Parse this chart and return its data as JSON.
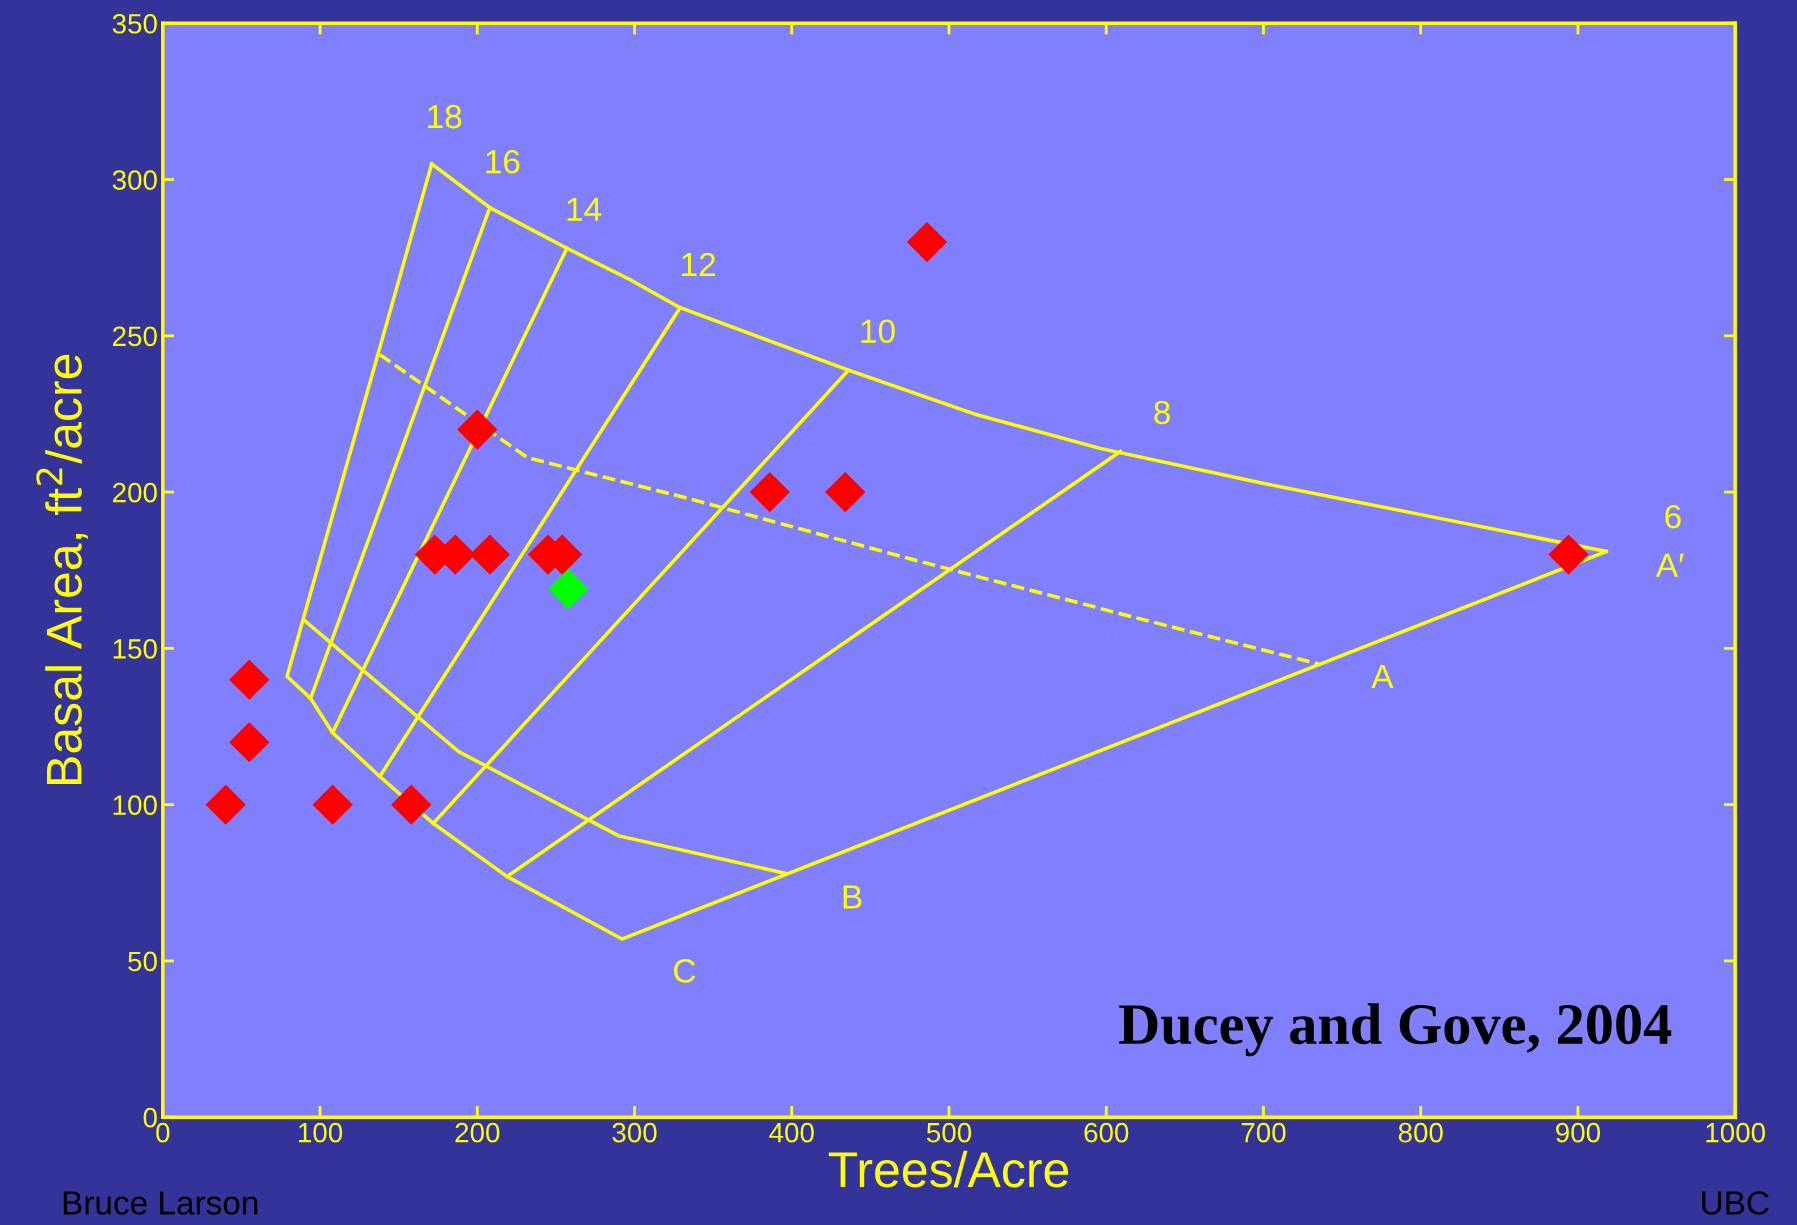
{
  "chart_data": {
    "type": "scatter",
    "xlabel": "Trees/Acre",
    "ylabel": "Basal Area, ft$^{2}$/acre",
    "xlim": [
      0,
      1000
    ],
    "ylim": [
      0,
      350
    ],
    "xticks": [
      0,
      100,
      200,
      300,
      400,
      500,
      600,
      700,
      800,
      900,
      1000
    ],
    "yticks": [
      0,
      50,
      100,
      150,
      200,
      250,
      300,
      350
    ],
    "grid": false,
    "series": [
      {
        "type": "line",
        "color": "#ffff00",
        "x": [
          171,
          208,
          257,
          297,
          329,
          436,
          516,
          596,
          698,
          808,
          918
        ],
        "values": [
          305,
          291,
          278,
          268,
          259,
          239,
          225,
          214,
          203,
          192,
          181
        ]
      },
      {
        "type": "line",
        "color": "#ffff00",
        "x": [
          171,
          79,
          94,
          108,
          138,
          172,
          219,
          292,
          918
        ],
        "values": [
          305,
          141,
          134,
          123,
          109,
          94,
          77,
          57,
          181
        ]
      },
      {
        "type": "line",
        "color": "#ffff00",
        "x": [
          90,
          188,
          290,
          396
        ],
        "values": [
          159,
          117,
          90,
          78
        ]
      },
      {
        "type": "line",
        "color": "#ffff00",
        "line_style": "dashed",
        "x": [
          138,
          232,
          334,
          480,
          625,
          735
        ],
        "values": [
          244,
          211,
          198,
          178,
          159,
          145
        ]
      },
      {
        "type": "line",
        "color": "#ffff00",
        "x": [
          208,
          94
        ],
        "values": [
          291,
          134
        ]
      },
      {
        "type": "line",
        "color": "#ffff00",
        "x": [
          257,
          108
        ],
        "values": [
          278,
          123
        ]
      },
      {
        "type": "line",
        "color": "#ffff00",
        "x": [
          329,
          138
        ],
        "values": [
          259,
          109
        ]
      },
      {
        "type": "line",
        "color": "#ffff00",
        "x": [
          436,
          172
        ],
        "values": [
          239,
          94
        ]
      },
      {
        "type": "line",
        "color": "#ffff00",
        "x": [
          609,
          219
        ],
        "values": [
          213,
          77
        ]
      },
      {
        "marker": "diamond",
        "color": "#ff0000",
        "x": [
          40,
          55,
          55,
          108,
          158,
          173,
          186,
          208,
          245,
          254,
          200,
          386,
          434,
          486,
          894
        ],
        "values": [
          100,
          140,
          120,
          100,
          100,
          180,
          180,
          180,
          180,
          180,
          220,
          200,
          200,
          280,
          180
        ]
      },
      {
        "marker": "diamond",
        "color": "#00ff00",
        "x": [
          258
        ],
        "values": [
          169
        ]
      }
    ],
    "annotations": [
      {
        "text": "18",
        "x": 171,
        "y": 305
      },
      {
        "text": "16",
        "x": 208,
        "y": 291
      },
      {
        "text": "14",
        "x": 257,
        "y": 278
      },
      {
        "text": "12",
        "x": 329,
        "y": 259
      },
      {
        "text": "10",
        "x": 436,
        "y": 239
      },
      {
        "text": "8",
        "x": 609,
        "y": 213
      },
      {
        "text": "6",
        "x": 918,
        "y": 181
      },
      {
        "text": "A′",
        "x": 918,
        "y": 181
      },
      {
        "text": "A",
        "x": 735,
        "y": 145
      },
      {
        "text": "B",
        "x": 396,
        "y": 78
      },
      {
        "text": "C",
        "x": 292,
        "y": 57
      },
      "Ducey and Gove, 2004",
      "Bruce Larson",
      "UBC"
    ]
  }
}
